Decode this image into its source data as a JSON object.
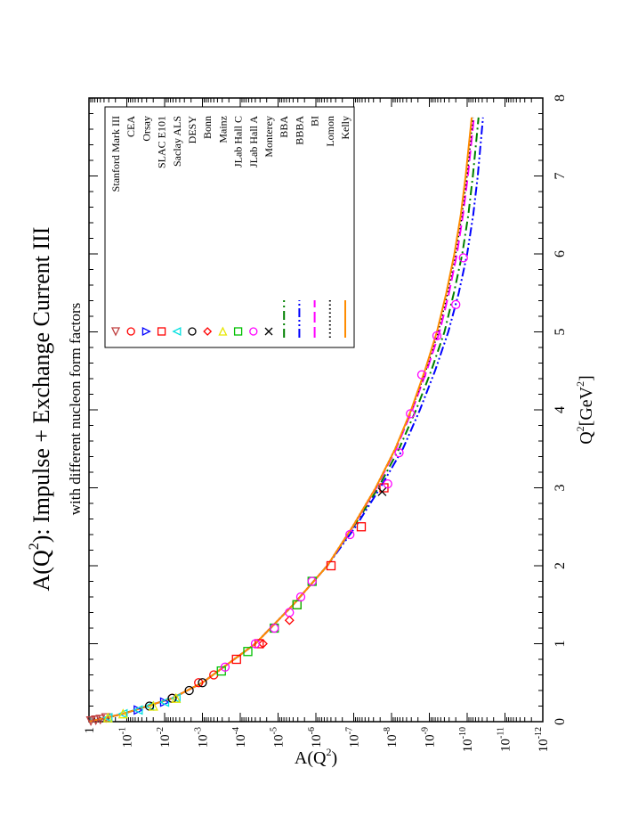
{
  "chart_data": {
    "type": "scatter",
    "orientation": "rotated-90-ccw",
    "title": "A(Q",
    "title_sup": "2",
    "title_rest": "): Impulse + Exchange Current III",
    "subtitle": "with different nucleon form factors",
    "xlabel": "Q",
    "xlabel_sup": "2",
    "xlabel_unit": "[GeV",
    "xlabel_unit_sup": "2",
    "xlabel_close": "]",
    "ylabel": "A(Q",
    "ylabel_sup": "2",
    "ylabel_close": ")",
    "xlim": [
      0,
      8
    ],
    "ylim_log10": [
      -12,
      0
    ],
    "x_ticks": [
      "0",
      "1",
      "2",
      "3",
      "4",
      "5",
      "6",
      "7",
      "8"
    ],
    "y_ticks": [
      {
        "base": "1",
        "exp": ""
      },
      {
        "base": "10",
        "exp": "-1"
      },
      {
        "base": "10",
        "exp": "-2"
      },
      {
        "base": "10",
        "exp": "-3"
      },
      {
        "base": "10",
        "exp": "-4"
      },
      {
        "base": "10",
        "exp": "-5"
      },
      {
        "base": "10",
        "exp": "-6"
      },
      {
        "base": "10",
        "exp": "-7"
      },
      {
        "base": "10",
        "exp": "-8"
      },
      {
        "base": "10",
        "exp": "-9"
      },
      {
        "base": "10",
        "exp": "-10"
      },
      {
        "base": "10",
        "exp": "-11"
      },
      {
        "base": "10",
        "exp": "-12"
      }
    ],
    "legend_position": "top-right",
    "data_series": [
      {
        "name": "Stanford Mark III",
        "marker": "triangle-down",
        "color": "#c04040",
        "points": [
          [
            0.01,
            -0.05
          ],
          [
            0.02,
            -0.18
          ],
          [
            0.03,
            -0.3
          ],
          [
            0.05,
            -0.45
          ]
        ]
      },
      {
        "name": "CEA",
        "marker": "circle",
        "color": "#ff0000",
        "points": [
          [
            0.3,
            -2.2
          ],
          [
            0.5,
            -2.9
          ],
          [
            0.6,
            -3.3
          ]
        ]
      },
      {
        "name": "Orsay",
        "marker": "triangle-left",
        "color": "#0000ff",
        "points": [
          [
            0.15,
            -1.3
          ],
          [
            0.25,
            -2.0
          ]
        ]
      },
      {
        "name": "SLAC E101",
        "marker": "square",
        "color": "#ff0000",
        "points": [
          [
            0.8,
            -3.9
          ],
          [
            1.0,
            -4.5
          ],
          [
            1.5,
            -5.5
          ],
          [
            2.0,
            -6.4
          ],
          [
            2.5,
            -7.2
          ],
          [
            3.0,
            -7.8
          ]
        ]
      },
      {
        "name": "Saclay ALS",
        "marker": "triangle-right",
        "color": "#00e0e0",
        "points": [
          [
            0.05,
            -0.5
          ],
          [
            0.1,
            -0.9
          ],
          [
            0.15,
            -1.3
          ],
          [
            0.2,
            -1.6
          ],
          [
            0.25,
            -2.0
          ],
          [
            0.3,
            -2.3
          ]
        ]
      },
      {
        "name": "DESY",
        "marker": "circle",
        "color": "#000000",
        "points": [
          [
            0.2,
            -1.6
          ],
          [
            0.3,
            -2.2
          ],
          [
            0.4,
            -2.65
          ],
          [
            0.5,
            -3.0
          ]
        ]
      },
      {
        "name": "Bonn",
        "marker": "diamond",
        "color": "#ff0000",
        "points": [
          [
            1.0,
            -4.6
          ],
          [
            1.3,
            -5.3
          ]
        ]
      },
      {
        "name": "Mainz",
        "marker": "triangle-up",
        "color": "#e6e600",
        "points": [
          [
            0.05,
            -0.5
          ],
          [
            0.1,
            -0.9
          ],
          [
            0.2,
            -1.7
          ],
          [
            0.3,
            -2.3
          ]
        ]
      },
      {
        "name": "JLab Hall C",
        "marker": "square",
        "color": "#00c000",
        "points": [
          [
            0.65,
            -3.5
          ],
          [
            0.9,
            -4.2
          ],
          [
            1.2,
            -4.9
          ],
          [
            1.5,
            -5.5
          ],
          [
            1.8,
            -5.9
          ]
        ]
      },
      {
        "name": "JLab Hall A",
        "marker": "circle",
        "color": "#ff00ff",
        "points": [
          [
            0.7,
            -3.6
          ],
          [
            1.0,
            -4.4
          ],
          [
            1.2,
            -4.9
          ],
          [
            1.4,
            -5.3
          ],
          [
            1.6,
            -5.6
          ],
          [
            1.8,
            -5.9
          ],
          [
            2.4,
            -6.9
          ],
          [
            3.05,
            -7.9
          ],
          [
            3.45,
            -8.2
          ],
          [
            3.95,
            -8.5
          ],
          [
            4.45,
            -8.8
          ],
          [
            4.95,
            -9.2
          ],
          [
            5.35,
            -9.7
          ],
          [
            5.95,
            -9.9
          ]
        ]
      },
      {
        "name": "Monterey",
        "marker": "cross",
        "color": "#000000",
        "points": [
          [
            2.95,
            -7.75
          ]
        ]
      }
    ],
    "curves": [
      {
        "name": "BBA",
        "style": "dash-dot",
        "color": "#008000",
        "points": [
          [
            0,
            0
          ],
          [
            0.1,
            -0.9
          ],
          [
            0.3,
            -2.2
          ],
          [
            0.5,
            -3.0
          ],
          [
            1,
            -4.4
          ],
          [
            1.5,
            -5.4
          ],
          [
            2,
            -6.3
          ],
          [
            2.5,
            -7.0
          ],
          [
            3,
            -7.65
          ],
          [
            3.5,
            -8.2
          ],
          [
            4,
            -8.65
          ],
          [
            4.5,
            -9.05
          ],
          [
            5,
            -9.4
          ],
          [
            5.5,
            -9.65
          ],
          [
            6,
            -9.87
          ],
          [
            6.5,
            -10.03
          ],
          [
            7,
            -10.15
          ],
          [
            7.75,
            -10.3
          ]
        ]
      },
      {
        "name": "BBBA",
        "style": "dash-dot-dot",
        "color": "#0000ff",
        "points": [
          [
            0,
            0
          ],
          [
            0.1,
            -0.9
          ],
          [
            0.3,
            -2.2
          ],
          [
            0.5,
            -3.0
          ],
          [
            1,
            -4.4
          ],
          [
            1.5,
            -5.4
          ],
          [
            2,
            -6.3
          ],
          [
            2.5,
            -7.05
          ],
          [
            3,
            -7.7
          ],
          [
            3.5,
            -8.3
          ],
          [
            4,
            -8.75
          ],
          [
            4.5,
            -9.15
          ],
          [
            5,
            -9.5
          ],
          [
            5.5,
            -9.78
          ],
          [
            6,
            -10.0
          ],
          [
            6.5,
            -10.16
          ],
          [
            7,
            -10.28
          ],
          [
            7.75,
            -10.42
          ]
        ]
      },
      {
        "name": "BI",
        "style": "long-dash",
        "color": "#ff00ff",
        "points": [
          [
            0,
            0
          ],
          [
            0.1,
            -0.9
          ],
          [
            0.3,
            -2.2
          ],
          [
            0.5,
            -3.0
          ],
          [
            1,
            -4.4
          ],
          [
            1.5,
            -5.4
          ],
          [
            2,
            -6.3
          ],
          [
            2.5,
            -6.98
          ],
          [
            3,
            -7.6
          ],
          [
            3.5,
            -8.12
          ],
          [
            4,
            -8.55
          ],
          [
            4.5,
            -8.93
          ],
          [
            5,
            -9.27
          ],
          [
            5.5,
            -9.52
          ],
          [
            6,
            -9.73
          ],
          [
            6.5,
            -9.89
          ],
          [
            7,
            -10.02
          ],
          [
            7.75,
            -10.18
          ]
        ]
      },
      {
        "name": "Lomon",
        "style": "dotted",
        "color": "#000000",
        "points": [
          [
            0,
            0
          ],
          [
            0.1,
            -0.9
          ],
          [
            0.3,
            -2.2
          ],
          [
            0.5,
            -3.0
          ],
          [
            1,
            -4.4
          ],
          [
            1.5,
            -5.4
          ],
          [
            2,
            -6.3
          ],
          [
            2.5,
            -6.97
          ],
          [
            3,
            -7.58
          ],
          [
            3.5,
            -8.1
          ],
          [
            4,
            -8.53
          ],
          [
            4.5,
            -8.9
          ],
          [
            5,
            -9.23
          ],
          [
            5.5,
            -9.48
          ],
          [
            6,
            -9.69
          ],
          [
            6.5,
            -9.86
          ],
          [
            7,
            -9.99
          ],
          [
            7.75,
            -10.15
          ]
        ]
      },
      {
        "name": "Kelly",
        "style": "solid",
        "color": "#ff8c00",
        "points": [
          [
            0,
            0
          ],
          [
            0.1,
            -0.9
          ],
          [
            0.3,
            -2.2
          ],
          [
            0.5,
            -3.0
          ],
          [
            1,
            -4.4
          ],
          [
            1.5,
            -5.4
          ],
          [
            2,
            -6.3
          ],
          [
            2.5,
            -6.97
          ],
          [
            3,
            -7.58
          ],
          [
            3.5,
            -8.1
          ],
          [
            4,
            -8.52
          ],
          [
            4.5,
            -8.88
          ],
          [
            5,
            -9.2
          ],
          [
            5.5,
            -9.45
          ],
          [
            6,
            -9.66
          ],
          [
            6.5,
            -9.83
          ],
          [
            7,
            -9.96
          ],
          [
            7.75,
            -10.12
          ]
        ]
      }
    ]
  }
}
